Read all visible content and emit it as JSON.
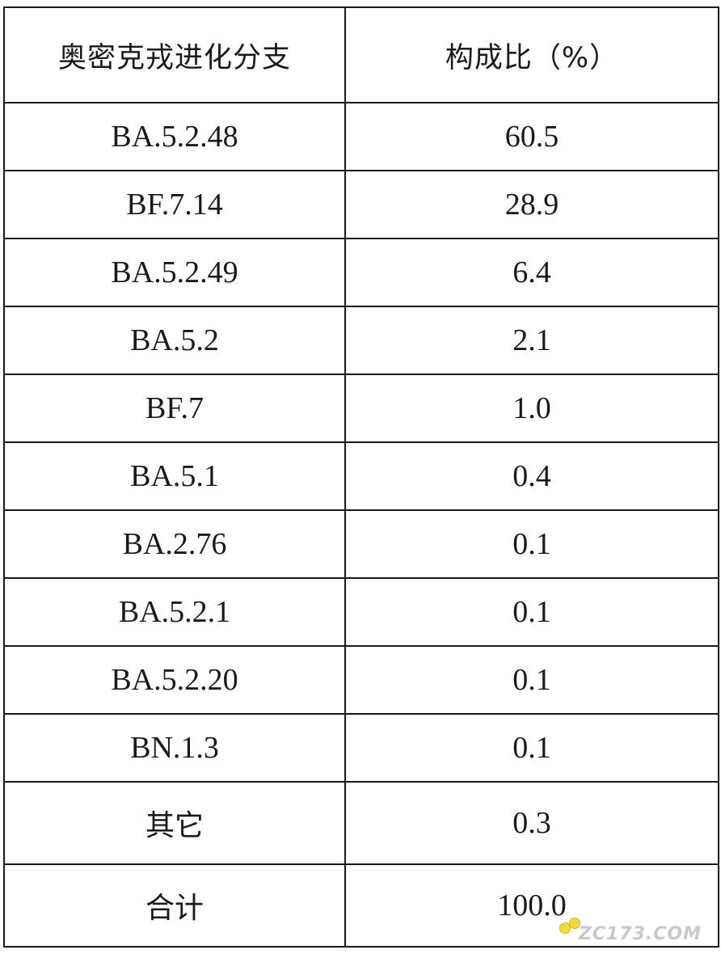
{
  "table": {
    "headers": [
      "奥密克戎进化分支",
      "构成比（%）"
    ],
    "rows": [
      {
        "branch": "BA.5.2.48",
        "ratio": "60.5"
      },
      {
        "branch": "BF.7.14",
        "ratio": "28.9"
      },
      {
        "branch": "BA.5.2.49",
        "ratio": "6.4"
      },
      {
        "branch": "BA.5.2",
        "ratio": "2.1"
      },
      {
        "branch": "BF.7",
        "ratio": "1.0"
      },
      {
        "branch": "BA.5.1",
        "ratio": "0.4"
      },
      {
        "branch": "BA.2.76",
        "ratio": "0.1"
      },
      {
        "branch": "BA.5.2.1",
        "ratio": "0.1"
      },
      {
        "branch": "BA.5.2.20",
        "ratio": "0.1"
      },
      {
        "branch": "BN.1.3",
        "ratio": "0.1"
      },
      {
        "branch": "其它",
        "ratio": "0.3"
      },
      {
        "branch": "合计",
        "ratio": "100.0"
      }
    ]
  },
  "watermark": {
    "text": "ZC173.COM"
  }
}
